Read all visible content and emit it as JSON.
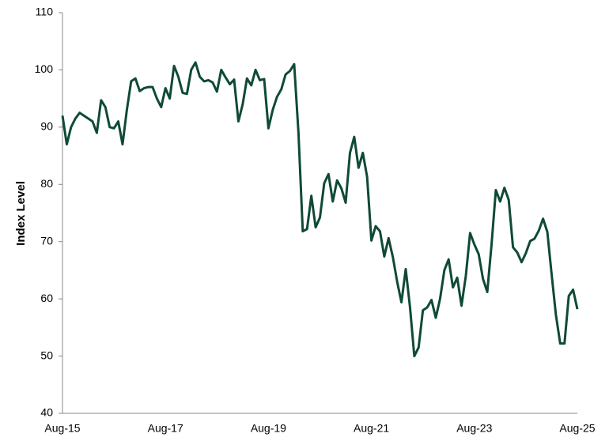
{
  "chart_data": {
    "type": "line",
    "ylabel": "Index Level",
    "categories": [
      "Aug-15",
      null,
      null,
      null,
      null,
      null,
      null,
      null,
      null,
      null,
      null,
      null,
      null,
      null,
      null,
      null,
      null,
      null,
      null,
      null,
      null,
      null,
      null,
      null,
      "Aug-17",
      null,
      null,
      null,
      null,
      null,
      null,
      null,
      null,
      null,
      null,
      null,
      null,
      null,
      null,
      null,
      null,
      null,
      null,
      null,
      null,
      null,
      null,
      null,
      "Aug-19",
      null,
      null,
      null,
      null,
      null,
      null,
      null,
      null,
      null,
      null,
      null,
      null,
      null,
      null,
      null,
      null,
      null,
      null,
      null,
      null,
      null,
      null,
      null,
      "Aug-21",
      null,
      null,
      null,
      null,
      null,
      null,
      null,
      null,
      null,
      null,
      null,
      null,
      null,
      null,
      null,
      null,
      null,
      null,
      null,
      null,
      null,
      null,
      null,
      "Aug-23",
      null,
      null,
      null,
      null,
      null,
      null,
      null,
      null,
      null,
      null,
      null,
      null,
      null,
      null,
      null,
      null,
      null,
      null,
      null,
      null,
      null,
      null,
      null,
      "Aug-25"
    ],
    "series": [
      {
        "color": "#0f4a37",
        "values": [
          92,
          87,
          90,
          91.5,
          92.5,
          92,
          91.5,
          91,
          89,
          94.7,
          93.5,
          90,
          89.8,
          91,
          87,
          93,
          98,
          98.5,
          96.3,
          96.8,
          97,
          97,
          95,
          93.5,
          96.8,
          95,
          100.7,
          98.8,
          96,
          95.8,
          100,
          101.3,
          98.8,
          98,
          98.2,
          97.8,
          96.2,
          100,
          98.7,
          97.5,
          98.3,
          91,
          94,
          98.5,
          97.3,
          100,
          98.2,
          98.4,
          89.8,
          93,
          95.3,
          96.6,
          99.2,
          99.8,
          101,
          89,
          71.8,
          72.2,
          78,
          72.5,
          74.2,
          80.2,
          81.8,
          77,
          80.7,
          79.3,
          76.8,
          85.5,
          88.3,
          82.9,
          85.5,
          81.3,
          70.2,
          72.7,
          71.8,
          67.4,
          70.6,
          67.3,
          63,
          59.4,
          65.2,
          58.5,
          50,
          51.5,
          58,
          58.5,
          59.8,
          56.7,
          60,
          65,
          66.9,
          62,
          63.7,
          58.8,
          64,
          71.5,
          69.5,
          67.8,
          63.5,
          61.2,
          69.5,
          79,
          77,
          79.4,
          77.3,
          69,
          68.1,
          66.4,
          68,
          70.1,
          70.5,
          71.9,
          74,
          71.7,
          64.3,
          57.2,
          52.2,
          52.2,
          60.5,
          61.6,
          58.2
        ]
      }
    ],
    "ylim": [
      40,
      110
    ],
    "yticks": [
      40,
      50,
      60,
      70,
      80,
      90,
      100,
      110
    ],
    "grid": false
  }
}
